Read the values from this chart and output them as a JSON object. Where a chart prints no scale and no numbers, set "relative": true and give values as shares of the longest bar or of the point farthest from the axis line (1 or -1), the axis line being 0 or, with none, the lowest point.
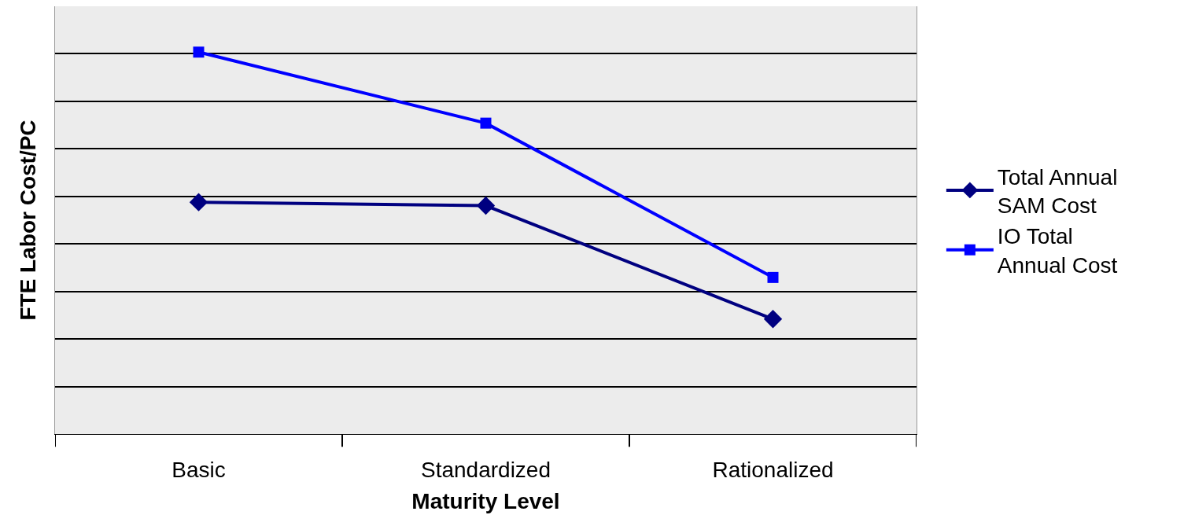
{
  "chart_data": {
    "type": "line",
    "relative": true,
    "xlabel": "Maturity Level",
    "ylabel": "FTE Labor Cost/PC",
    "categories": [
      "Basic",
      "Standardized",
      "Rationalized"
    ],
    "series": [
      {
        "name": "Total Annual SAM Cost",
        "color": "#000080",
        "marker": "diamond",
        "values": [
          0.607,
          0.598,
          0.301
        ]
      },
      {
        "name": "IO Total Annual Cost",
        "color": "#0000ff",
        "marker": "square",
        "values": [
          1,
          0.814,
          0.41
        ]
      }
    ],
    "grid": "y",
    "legend": "right",
    "line_style": "solid"
  }
}
